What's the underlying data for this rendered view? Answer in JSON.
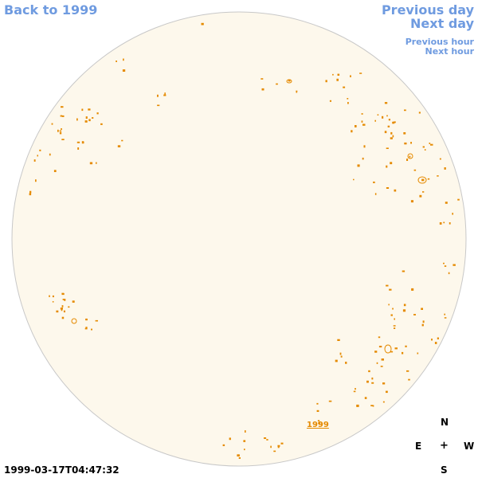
{
  "nav": {
    "back": "Back to 1999",
    "previous_day": "Previous day",
    "next_day": "Next day",
    "previous_hour": "Previous hour",
    "next_hour": "Next hour"
  },
  "compass": {
    "north": "N",
    "east": "E",
    "west": "W",
    "south": "S",
    "center": "+"
  },
  "timestamp": "1999-03-17T04:47:32",
  "disk_label": "1999",
  "colors": {
    "link": "#6f9be0",
    "disk_fill": "#fdf8ec",
    "disk_border": "#c8c8c8",
    "contour": "#e58a00"
  }
}
